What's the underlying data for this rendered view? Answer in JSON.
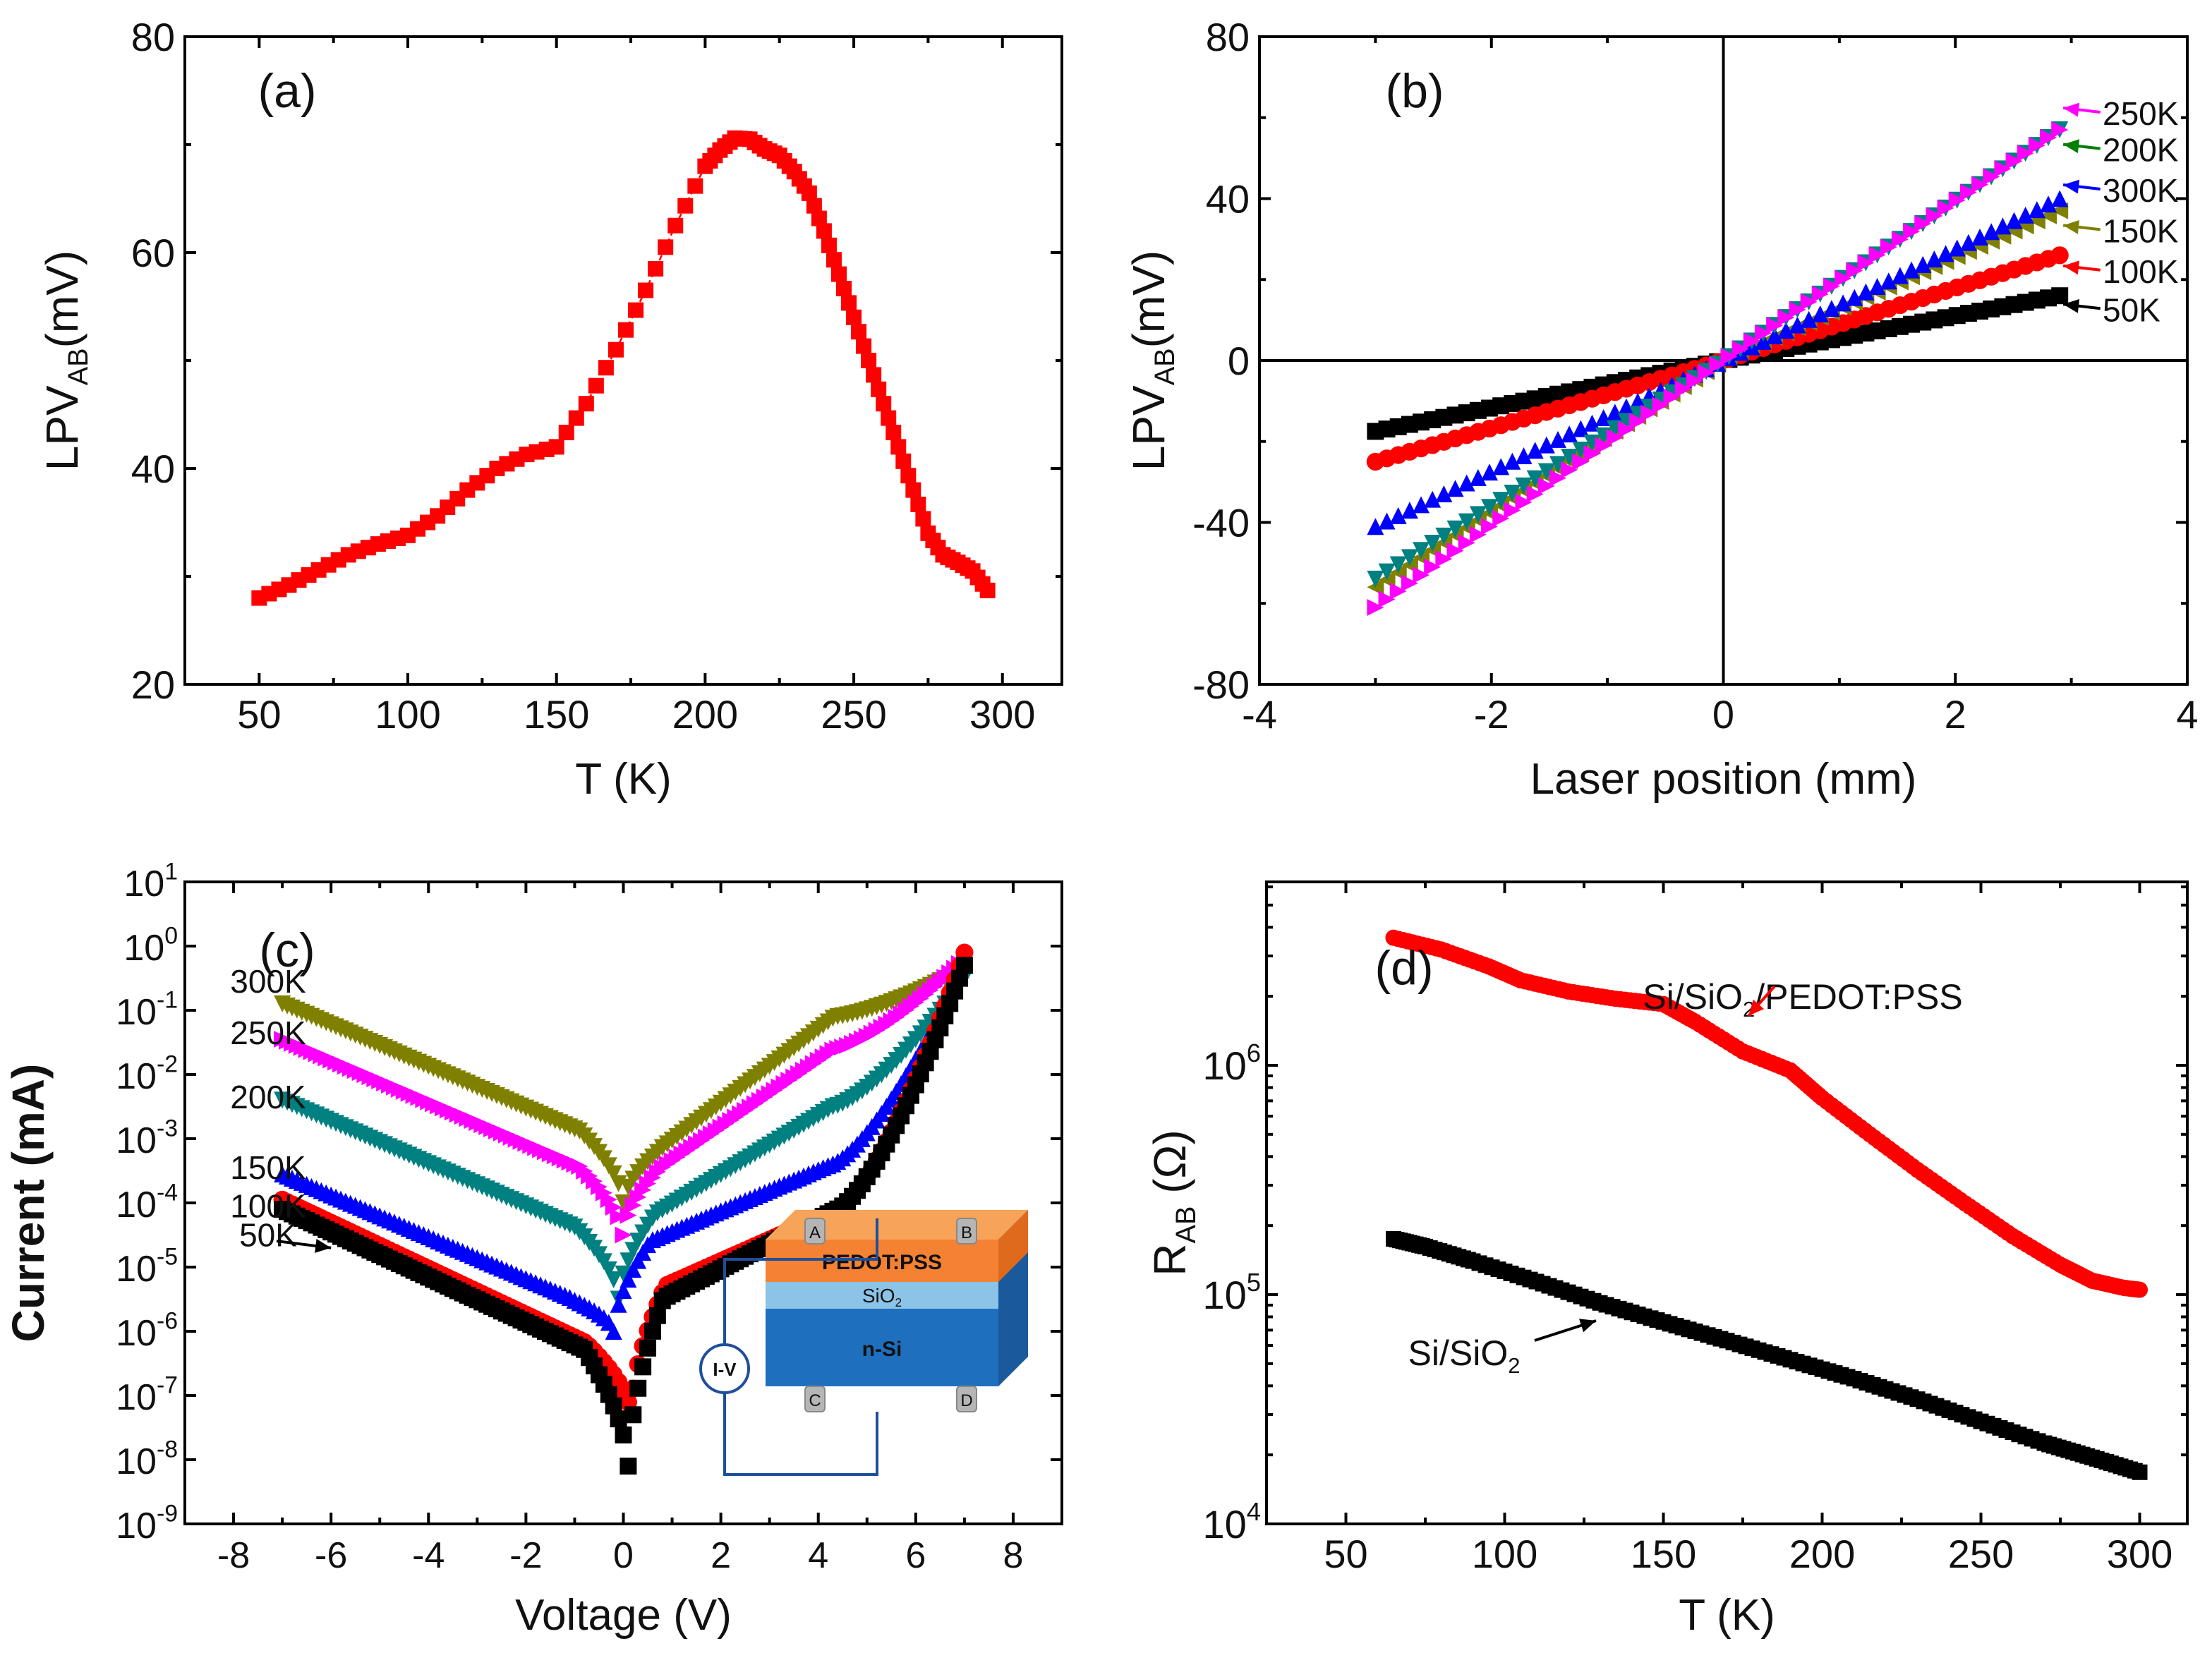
{
  "colors": {
    "K50": "#000000",
    "K100": "#ff0000",
    "K150": "#808000",
    "K200": "#008080",
    "K250": "#ff00ff",
    "K300": "#0000ff",
    "label200": "#007f00",
    "pedot": "#f58232",
    "pedot_top": "#f7a35a",
    "sio2": "#8cc4e8",
    "nsi": "#1f6fbf",
    "nsi_side": "#1a5a9c",
    "wire": "#1f4e9c"
  },
  "inset": {
    "pedot": "PEDOT:PSS",
    "sio2_base": "SiO",
    "sio2_sub": "2",
    "nsi": "n-Si",
    "meter": "I-V",
    "contacts": [
      "A",
      "B",
      "C",
      "D"
    ]
  },
  "chart_data": [
    {
      "id": "a",
      "type": "line",
      "panel_label": "(a)",
      "xlabel": "T (K)",
      "ylabel_base": "LPV",
      "ylabel_sub": "AB",
      "ylabel_tail": "(mV)",
      "xlim": [
        25,
        320
      ],
      "ylim": [
        20,
        80
      ],
      "xticks": [
        50,
        100,
        150,
        200,
        250,
        300
      ],
      "yticks": [
        20,
        40,
        60,
        80
      ],
      "series": [
        {
          "name": "LPV_AB",
          "color_key": "K100",
          "marker": "square",
          "x": [
            50,
            60,
            70,
            80,
            90,
            100,
            110,
            120,
            130,
            140,
            150,
            160,
            170,
            180,
            190,
            200,
            205,
            210,
            215,
            220,
            225,
            230,
            235,
            240,
            245,
            250,
            255,
            260,
            265,
            270,
            275,
            280,
            285,
            290,
            295
          ],
          "y": [
            28,
            29.2,
            30.6,
            32,
            33,
            33.8,
            35.6,
            38,
            40,
            41.3,
            42,
            46,
            51,
            56.5,
            62.5,
            68,
            69.5,
            70.6,
            70.5,
            69.6,
            69,
            67.5,
            65.5,
            62,
            58,
            54,
            50,
            46,
            42,
            38,
            34,
            32,
            31.3,
            30.5,
            28.7
          ]
        }
      ]
    },
    {
      "id": "b",
      "type": "scatter",
      "panel_label": "(b)",
      "xlabel": "Laser position (mm)",
      "ylabel_base": "LPV",
      "ylabel_sub": "AB",
      "ylabel_tail": "(mV)",
      "xlim": [
        -4,
        4
      ],
      "ylim": [
        -80,
        80
      ],
      "xticks": [
        -4,
        -2,
        0,
        2,
        4
      ],
      "yticks": [
        -80,
        -40,
        0,
        40,
        80
      ],
      "series": [
        {
          "name": "50K",
          "color_key": "K50",
          "marker": "square",
          "x0": -3,
          "x1": 2.9,
          "y0": -17.5,
          "y1": 16
        },
        {
          "name": "100K",
          "color_key": "K100",
          "marker": "circle",
          "x0": -3,
          "x1": 2.9,
          "y0": -25,
          "y1": 26
        },
        {
          "name": "150K",
          "color_key": "K150",
          "marker": "tri-left",
          "x0": -3,
          "x1": 2.9,
          "y0": -56,
          "y1": 37
        },
        {
          "name": "300K",
          "color_key": "K300",
          "marker": "tri-up",
          "x0": -3,
          "x1": 2.9,
          "y0": -41,
          "y1": 40
        },
        {
          "name": "200K",
          "color_key": "K200",
          "marker": "tri-down",
          "x0": -3,
          "x1": 2.9,
          "y0": -54,
          "y1": 57
        },
        {
          "name": "250K",
          "color_key": "K250",
          "marker": "tri-right",
          "x0": -3,
          "x1": 2.9,
          "y0": -61,
          "y1": 57
        }
      ],
      "legend_labels": [
        {
          "text": "250K",
          "color_key": "K250",
          "y": 61
        },
        {
          "text": "200K",
          "color_key": "label200",
          "y": 52
        },
        {
          "text": "300K",
          "color_key": "K300",
          "y": 42
        },
        {
          "text": "150K",
          "color_key": "K150",
          "y": 32
        },
        {
          "text": "100K",
          "color_key": "K100",
          "y": 22
        },
        {
          "text": "50K",
          "color_key": "K50",
          "y": 12.5
        }
      ]
    },
    {
      "id": "c",
      "type": "scatter",
      "panel_label": "(c)",
      "xlabel": "Voltage (V)",
      "ylabel": "Current (mA)",
      "xlim": [
        -9,
        9
      ],
      "ylim_exp": [
        -9,
        1
      ],
      "yscale": "log",
      "xticks": [
        -8,
        -6,
        -4,
        -2,
        0,
        2,
        4,
        6,
        8
      ],
      "yticks_exp": [
        1,
        0,
        -1,
        -2,
        -3,
        -4,
        -5,
        -6,
        -7,
        -8,
        -9
      ],
      "ytick_base": "10",
      "series": [
        {
          "name": "300K",
          "color_key": "K150",
          "marker": "tri-down",
          "xmin": -7,
          "xmax": 7,
          "v0": 0,
          "log_left": [
            -0.9,
            -1.3
          ],
          "log_min": -4,
          "log_right": [
            -3.2,
            -1.1
          ],
          "log_end": -0.35
        },
        {
          "name": "250K",
          "color_key": "K250",
          "marker": "tri-right",
          "xmin": -7,
          "xmax": 7,
          "v0": 0,
          "log_left": [
            -1.45,
            -1.85
          ],
          "log_min": -4.5,
          "log_right": [
            -3.5,
            -1.6
          ],
          "log_end": -0.2
        },
        {
          "name": "200K",
          "color_key": "K200",
          "marker": "tri-down",
          "xmin": -7,
          "xmax": 7,
          "v0": -0.1,
          "log_left": [
            -2.4,
            -2.8
          ],
          "log_min": -5.5,
          "log_right": [
            -4.2,
            -2.5
          ],
          "log_end": -0.5
        },
        {
          "name": "150K",
          "color_key": "K300",
          "marker": "tri-up",
          "xmin": -7,
          "xmax": 7,
          "v0": -0.2,
          "log_left": [
            -3.55,
            -3.9
          ],
          "log_min": -6.0,
          "log_right": [
            -4.6,
            -3.4
          ],
          "log_end": -0.3
        },
        {
          "name": "100K",
          "color_key": "K100",
          "marker": "circle",
          "xmin": -7,
          "xmax": 7,
          "v0": 0.15,
          "log_left": [
            -3.95,
            -4.6
          ],
          "log_min": -7.3,
          "log_right": [
            -5.3,
            -4.1
          ],
          "log_end": -0.1
        },
        {
          "name": "50K",
          "color_key": "K50",
          "marker": "square",
          "xmin": -7,
          "xmax": 7,
          "v0": 0.1,
          "log_left": [
            -4.1,
            -4.7
          ],
          "log_min": -8.1,
          "log_right": [
            -5.5,
            -4.1
          ],
          "log_end": -0.3
        }
      ],
      "labels": [
        {
          "text": "300K",
          "color_key": "K150",
          "exp": -0.55
        },
        {
          "text": "250K",
          "color_key": "K250",
          "exp": -1.35
        },
        {
          "text": "200K",
          "color_key": "K200",
          "exp": -2.35
        },
        {
          "text": "150K",
          "color_key": "K300",
          "exp": -3.45
        },
        {
          "text": "100K",
          "color_key": "K100",
          "exp": -4.05
        },
        {
          "text": "50K",
          "color_key": "K50",
          "exp": -4.5
        }
      ]
    },
    {
      "id": "d",
      "type": "line",
      "panel_label": "(d)",
      "xlabel": "T (K)",
      "ylabel_base": "R",
      "ylabel_sub": "AB",
      "ylabel_tail": " (Ω)",
      "xlim": [
        25,
        315
      ],
      "ylim_exp": [
        4,
        6.8
      ],
      "yscale": "log",
      "xticks": [
        50,
        100,
        150,
        200,
        250,
        300
      ],
      "yticks_exp": [
        4,
        5,
        6
      ],
      "ytick_base": "10",
      "series": [
        {
          "name": "Si/SiO2/PEDOT:PSS",
          "color_key": "K100",
          "marker": "circle",
          "x": [
            65,
            80,
            95,
            105,
            120,
            135,
            150,
            160,
            175,
            190,
            200,
            215,
            230,
            245,
            260,
            275,
            285,
            295,
            300
          ],
          "y": [
            3600000.0,
            3200000.0,
            2700000.0,
            2350000.0,
            2100000.0,
            1950000.0,
            1850000.0,
            1550000.0,
            1150000.0,
            950000.0,
            720000.0,
            500000.0,
            350000.0,
            250000.0,
            180000.0,
            135000.0,
            115000.0,
            107000.0,
            105000.0
          ]
        },
        {
          "name": "Si/SiO2",
          "color_key": "K50",
          "marker": "square",
          "x": [
            65,
            75,
            90,
            110,
            130,
            150,
            170,
            190,
            210,
            230,
            250,
            270,
            285,
            300
          ],
          "y": [
            175000.0,
            162000.0,
            140000.0,
            114000.0,
            92000.0,
            76000.0,
            63000.0,
            52000.0,
            43000.0,
            35000.0,
            28000.0,
            22500.0,
            19500.0,
            16800.0
          ]
        }
      ],
      "annotations": [
        {
          "base": "Si/SiO",
          "sub": "2",
          "tail": "/PEDOT:PSS",
          "color_key": "K100"
        },
        {
          "base": "Si/SiO",
          "sub": "2",
          "tail": "",
          "color_key": "K50"
        }
      ]
    }
  ]
}
